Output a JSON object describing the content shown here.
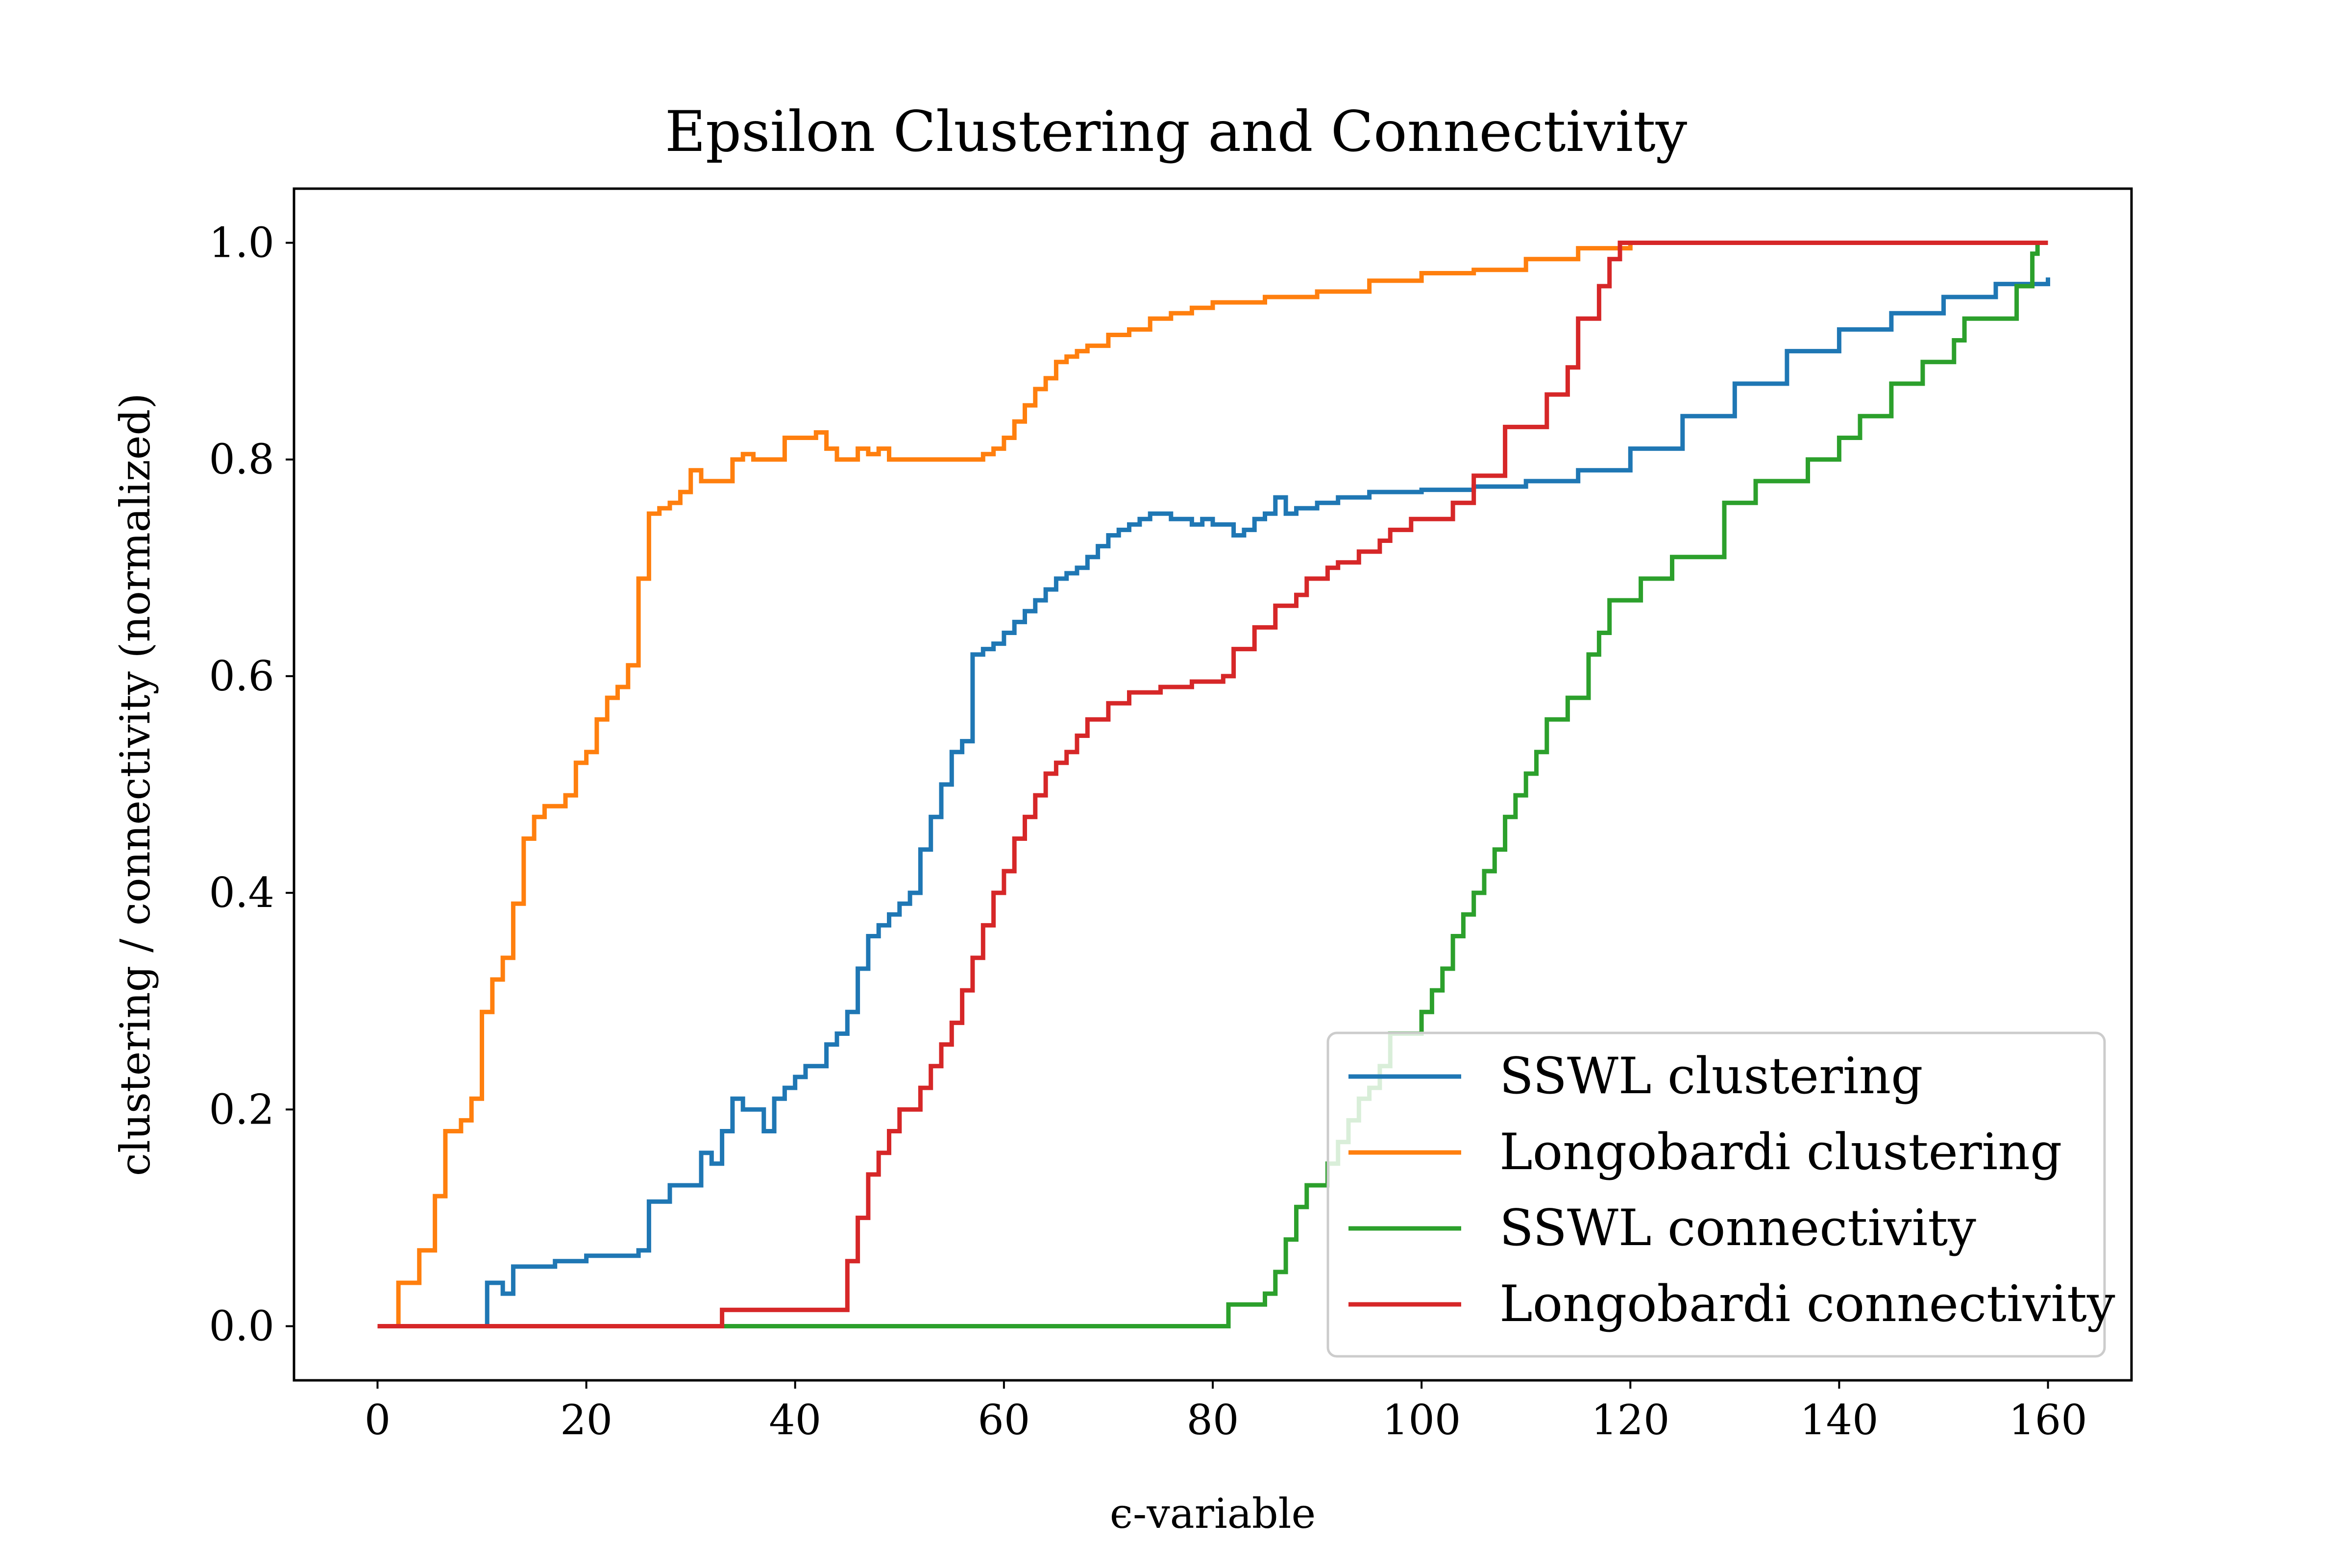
{
  "chart_data": {
    "type": "line",
    "title": "Epsilon Clustering and Connectivity",
    "xlabel": "ϵ-variable",
    "ylabel": "clustering / connectivity (normalized)",
    "xlim": [
      -8,
      168
    ],
    "ylim": [
      -0.05,
      1.05
    ],
    "xticks": [
      0,
      20,
      40,
      60,
      80,
      100,
      120,
      140,
      160
    ],
    "xtick_labels": [
      "0",
      "20",
      "40",
      "60",
      "80",
      "100",
      "120",
      "140",
      "160"
    ],
    "yticks": [
      0.0,
      0.2,
      0.4,
      0.6,
      0.8,
      1.0
    ],
    "ytick_labels": [
      "0.0",
      "0.2",
      "0.4",
      "0.6",
      "0.8",
      "1.0"
    ],
    "grid": false,
    "legend_position": "lower-right",
    "step": true,
    "series": [
      {
        "name": "SSWL clustering",
        "color": "#1f77b4",
        "x": [
          0,
          10.5,
          12,
          13,
          17,
          20,
          25,
          26,
          28,
          29,
          31,
          32,
          33,
          34,
          35,
          36,
          37,
          38,
          39,
          40,
          41,
          42,
          43,
          44,
          45,
          46,
          47,
          48,
          49,
          50,
          51,
          52,
          53,
          54,
          55,
          56,
          57,
          58,
          59,
          60,
          61,
          62,
          63,
          64,
          65,
          66,
          67,
          68,
          69,
          70,
          71,
          72,
          73,
          74,
          75,
          76,
          77,
          78,
          79,
          80,
          81,
          82,
          83,
          84,
          85,
          86,
          87,
          88,
          90,
          92,
          95,
          100,
          105,
          110,
          115,
          120,
          125,
          130,
          135,
          140,
          145,
          150,
          155,
          160
        ],
        "y": [
          0.0,
          0.04,
          0.03,
          0.055,
          0.06,
          0.065,
          0.07,
          0.115,
          0.13,
          0.13,
          0.16,
          0.15,
          0.18,
          0.21,
          0.2,
          0.2,
          0.18,
          0.21,
          0.22,
          0.23,
          0.24,
          0.24,
          0.26,
          0.27,
          0.29,
          0.33,
          0.36,
          0.37,
          0.38,
          0.39,
          0.4,
          0.44,
          0.47,
          0.5,
          0.53,
          0.54,
          0.62,
          0.625,
          0.63,
          0.64,
          0.65,
          0.66,
          0.67,
          0.68,
          0.69,
          0.695,
          0.7,
          0.71,
          0.72,
          0.73,
          0.735,
          0.74,
          0.745,
          0.75,
          0.75,
          0.745,
          0.745,
          0.74,
          0.745,
          0.74,
          0.74,
          0.73,
          0.735,
          0.745,
          0.75,
          0.765,
          0.75,
          0.755,
          0.76,
          0.765,
          0.77,
          0.772,
          0.775,
          0.78,
          0.79,
          0.81,
          0.84,
          0.87,
          0.9,
          0.92,
          0.935,
          0.95,
          0.962,
          0.968
        ]
      },
      {
        "name": "Longobardi clustering",
        "color": "#ff7f0e",
        "x": [
          0,
          2,
          4,
          5.5,
          6.5,
          8,
          9,
          10,
          11,
          12,
          13,
          14,
          15,
          16,
          18,
          19,
          20,
          21,
          22,
          23,
          24,
          25,
          26,
          27,
          28,
          29,
          30,
          31,
          32,
          33,
          34,
          35,
          36,
          37,
          38,
          39,
          40,
          41,
          42,
          43,
          44,
          45,
          46,
          47,
          48,
          49,
          50,
          52,
          54,
          55,
          56,
          57,
          58,
          59,
          60,
          61,
          62,
          63,
          64,
          65,
          66,
          67,
          68,
          70,
          72,
          74,
          76,
          78,
          80,
          85,
          90,
          95,
          100,
          105,
          110,
          115,
          120,
          122,
          160
        ],
        "y": [
          0.0,
          0.04,
          0.07,
          0.12,
          0.18,
          0.19,
          0.21,
          0.29,
          0.32,
          0.34,
          0.39,
          0.45,
          0.47,
          0.48,
          0.49,
          0.52,
          0.53,
          0.56,
          0.58,
          0.59,
          0.61,
          0.69,
          0.75,
          0.755,
          0.76,
          0.77,
          0.79,
          0.78,
          0.78,
          0.78,
          0.8,
          0.805,
          0.8,
          0.8,
          0.8,
          0.82,
          0.82,
          0.82,
          0.825,
          0.81,
          0.8,
          0.8,
          0.81,
          0.805,
          0.81,
          0.8,
          0.8,
          0.8,
          0.8,
          0.8,
          0.8,
          0.8,
          0.805,
          0.81,
          0.82,
          0.835,
          0.85,
          0.865,
          0.875,
          0.89,
          0.895,
          0.9,
          0.905,
          0.915,
          0.92,
          0.93,
          0.935,
          0.94,
          0.945,
          0.95,
          0.955,
          0.965,
          0.972,
          0.975,
          0.985,
          0.995,
          1.0,
          1.0,
          1.0
        ]
      },
      {
        "name": "SSWL connectivity",
        "color": "#2ca02c",
        "x": [
          0,
          81.5,
          85,
          86,
          87,
          88,
          89,
          91,
          92,
          93,
          94,
          95,
          96,
          97,
          100,
          101,
          102,
          103,
          104,
          105,
          106,
          107,
          108,
          109,
          110,
          111,
          112,
          114,
          116,
          117,
          118,
          121,
          124,
          129,
          132,
          137,
          140,
          142,
          145,
          148,
          151,
          152,
          157,
          158.5,
          159
        ],
        "y": [
          0.0,
          0.02,
          0.03,
          0.05,
          0.08,
          0.11,
          0.13,
          0.15,
          0.17,
          0.19,
          0.21,
          0.22,
          0.24,
          0.27,
          0.29,
          0.31,
          0.33,
          0.36,
          0.38,
          0.4,
          0.42,
          0.44,
          0.47,
          0.49,
          0.51,
          0.53,
          0.56,
          0.58,
          0.62,
          0.64,
          0.67,
          0.69,
          0.71,
          0.76,
          0.78,
          0.8,
          0.82,
          0.84,
          0.87,
          0.89,
          0.91,
          0.93,
          0.96,
          0.99,
          1.0
        ]
      },
      {
        "name": "Longobardi connectivity",
        "color": "#d62728",
        "x": [
          0,
          33,
          45,
          46,
          47,
          48,
          49,
          50,
          52,
          53,
          54,
          55,
          56,
          57,
          58,
          59,
          60,
          61,
          62,
          63,
          64,
          65,
          66,
          67,
          68,
          70,
          72,
          75,
          78,
          81,
          82,
          84,
          86,
          88,
          89,
          91,
          92,
          94,
          96,
          97,
          99,
          103,
          105,
          108,
          112,
          114,
          115,
          117,
          118,
          119,
          121,
          160
        ],
        "y": [
          0.0,
          0.015,
          0.06,
          0.1,
          0.14,
          0.16,
          0.18,
          0.2,
          0.22,
          0.24,
          0.26,
          0.28,
          0.31,
          0.34,
          0.37,
          0.4,
          0.42,
          0.45,
          0.47,
          0.49,
          0.51,
          0.52,
          0.53,
          0.545,
          0.56,
          0.575,
          0.585,
          0.59,
          0.595,
          0.6,
          0.625,
          0.645,
          0.665,
          0.675,
          0.69,
          0.7,
          0.705,
          0.715,
          0.725,
          0.735,
          0.745,
          0.76,
          0.785,
          0.83,
          0.86,
          0.885,
          0.93,
          0.96,
          0.985,
          1.0,
          1.0,
          1.0
        ]
      }
    ]
  }
}
